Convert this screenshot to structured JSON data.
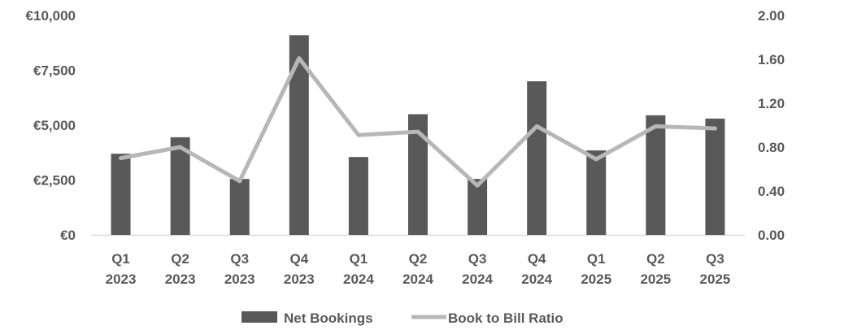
{
  "chart_data": {
    "type": "bar",
    "categories": [
      [
        "Q1",
        "2023"
      ],
      [
        "Q2",
        "2023"
      ],
      [
        "Q3",
        "2023"
      ],
      [
        "Q4",
        "2023"
      ],
      [
        "Q1",
        "2024"
      ],
      [
        "Q2",
        "2024"
      ],
      [
        "Q3",
        "2024"
      ],
      [
        "Q4",
        "2024"
      ],
      [
        "Q1",
        "2025"
      ],
      [
        "Q2",
        "2025"
      ],
      [
        "Q3",
        "2025"
      ]
    ],
    "series": [
      {
        "name": "Net Bookings",
        "type": "bar",
        "axis": "left",
        "color": "#595959",
        "values": [
          3700,
          4450,
          2550,
          9100,
          3550,
          5500,
          2550,
          7000,
          3850,
          5450,
          5300
        ]
      },
      {
        "name": "Book to Bill Ratio",
        "type": "line",
        "axis": "right",
        "color": "#b7b7b7",
        "values": [
          0.7,
          0.8,
          0.49,
          1.61,
          0.91,
          0.94,
          0.45,
          0.99,
          0.69,
          0.99,
          0.97
        ]
      }
    ],
    "y_left": {
      "ylim": [
        0,
        10000
      ],
      "ticks": [
        0,
        2500,
        5000,
        7500,
        10000
      ],
      "tick_labels": [
        "€0",
        "€2,500",
        "€5,000",
        "€7,500",
        "€10,000"
      ]
    },
    "y_right": {
      "ylim": [
        0,
        2.0
      ],
      "ticks": [
        0,
        0.4,
        0.8,
        1.2,
        1.6,
        2.0
      ],
      "tick_labels": [
        "0.00",
        "0.40",
        "0.80",
        "1.20",
        "1.60",
        "2.00"
      ]
    },
    "title": "",
    "xlabel": "",
    "ylabel": "",
    "grid": false,
    "legend": "bottom-center",
    "axis_color": "#d9d9d9",
    "text_color": "#595959"
  }
}
